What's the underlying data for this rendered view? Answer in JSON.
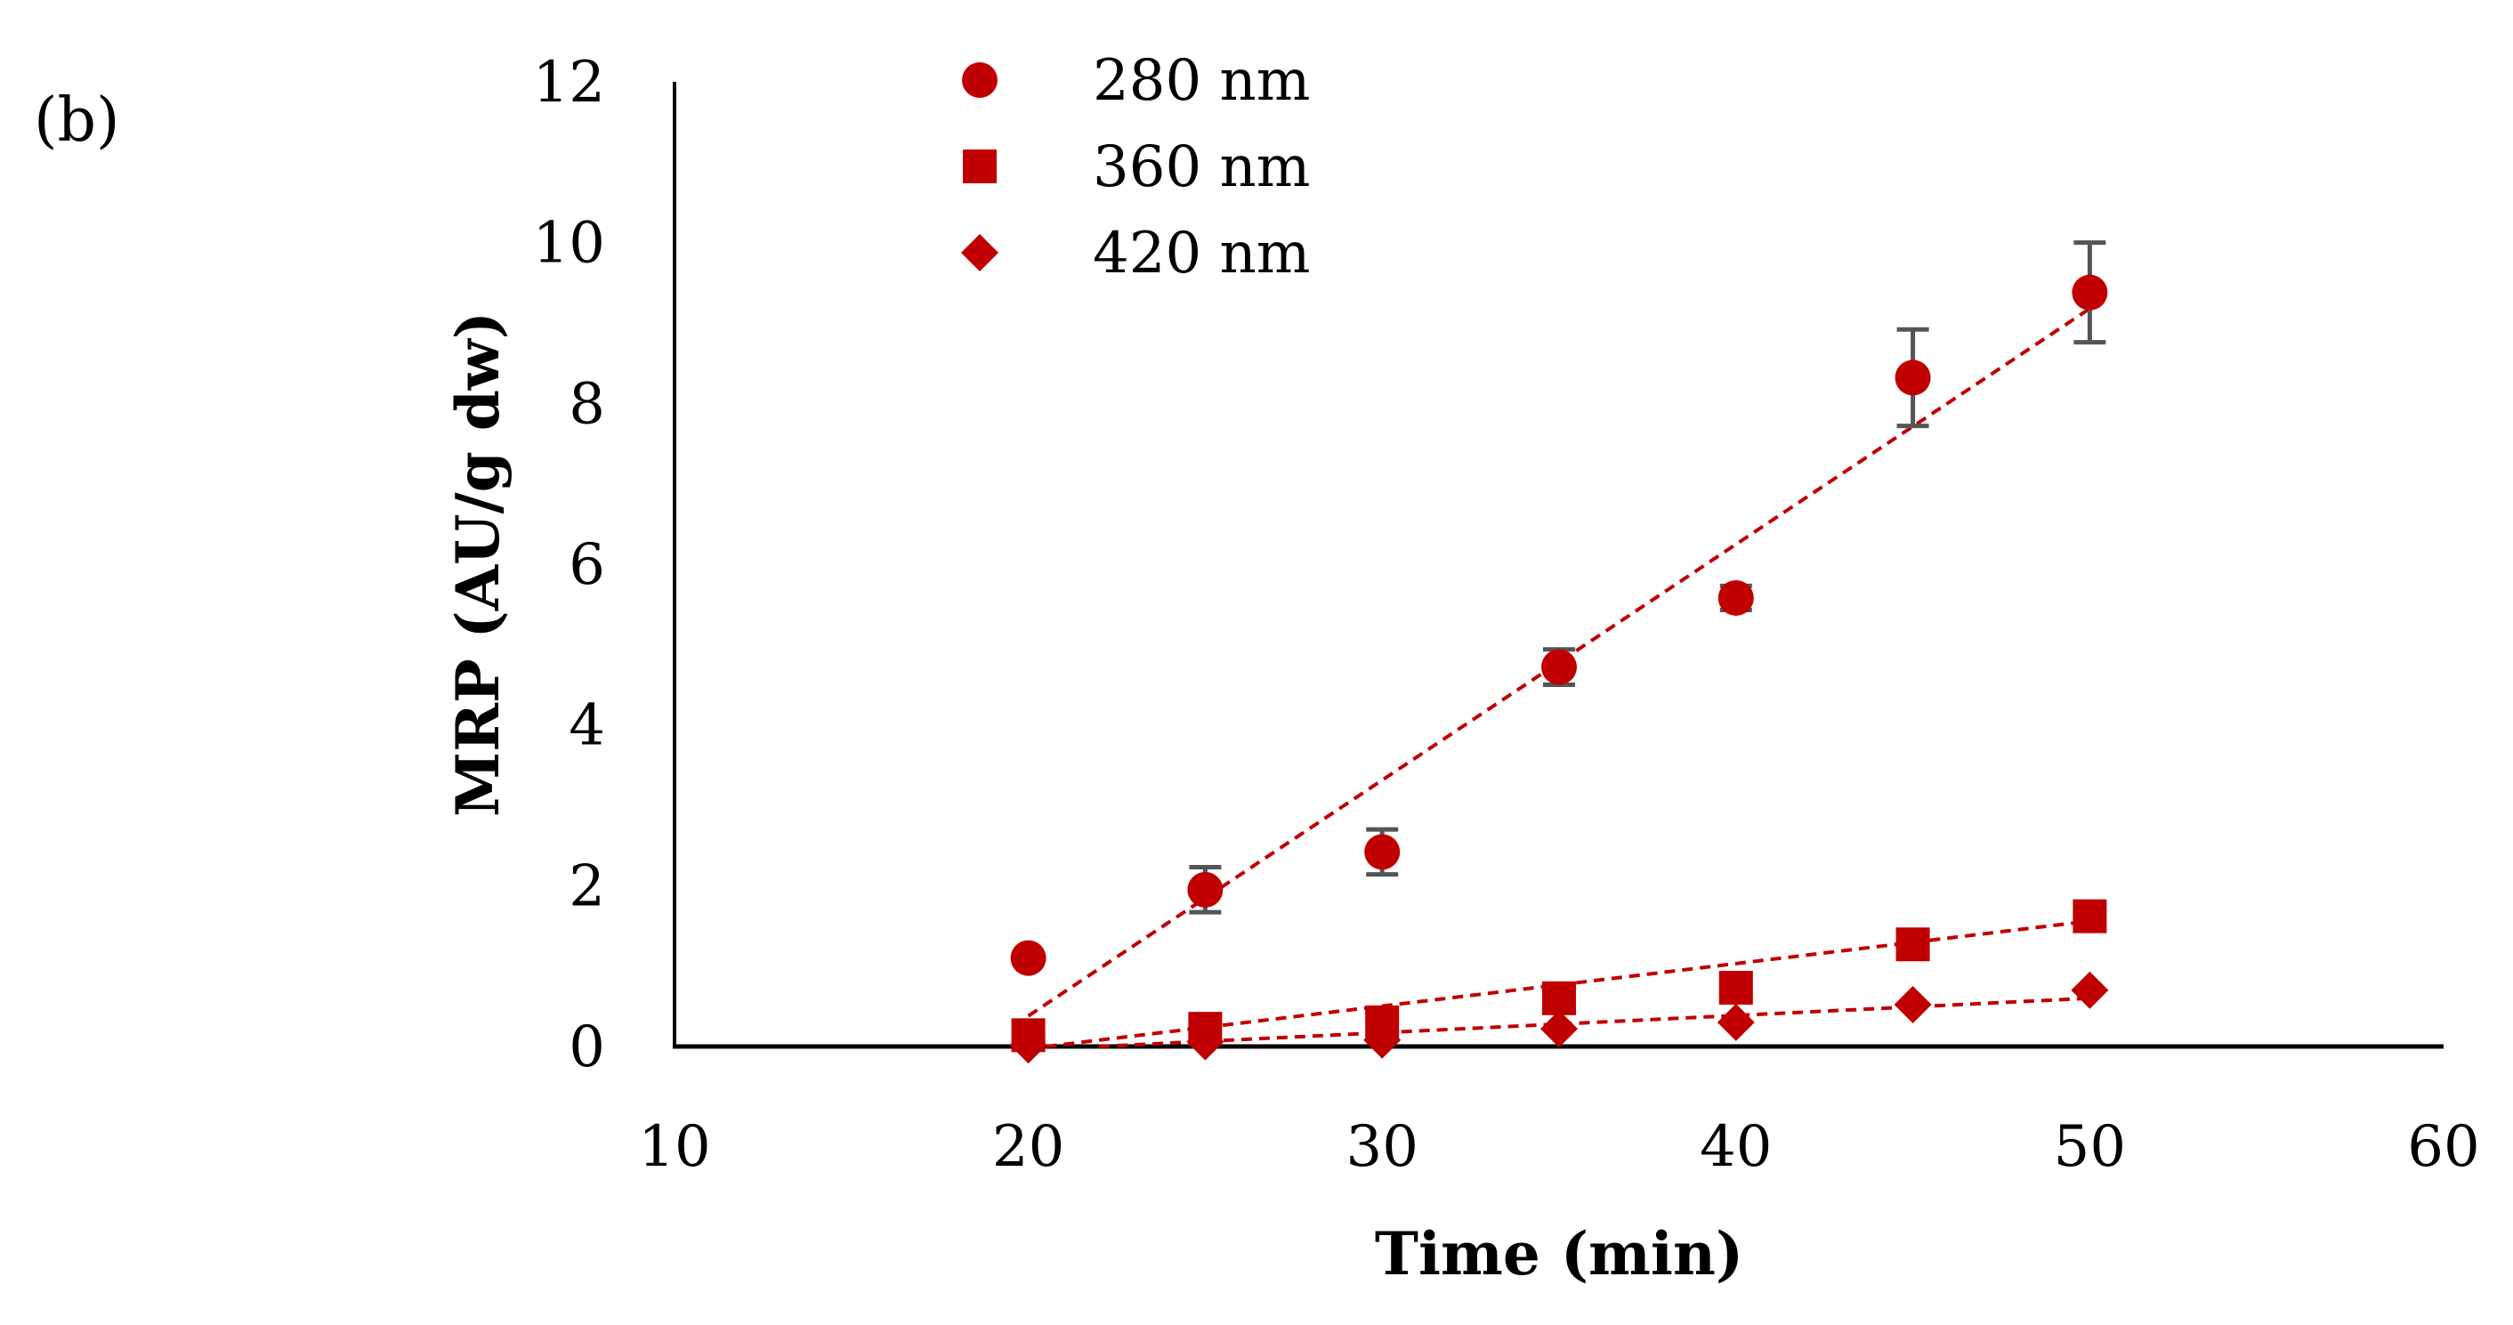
{
  "chart_data": {
    "type": "scatter",
    "panel_label": "(b)",
    "title": "",
    "xlabel": "Time (min)",
    "ylabel": "MRP (AU/g dw)",
    "xlim": [
      10,
      60
    ],
    "ylim": [
      0,
      12
    ],
    "x_ticks": [
      "10",
      "20",
      "30",
      "40",
      "50",
      "60"
    ],
    "y_ticks": [
      "0",
      "2",
      "4",
      "6",
      "8",
      "10",
      "12"
    ],
    "grid": false,
    "legend_position": "top-left",
    "x": [
      20,
      25,
      30,
      35,
      40,
      45,
      50
    ],
    "series": [
      {
        "name": "280 nm",
        "marker": "circle",
        "values": [
          1.1,
          1.95,
          2.42,
          4.72,
          5.58,
          8.32,
          9.38
        ],
        "errors": [
          0,
          0.28,
          0.28,
          0.22,
          0.15,
          0.6,
          0.62
        ],
        "trendline": [
          [
            20,
            0.38
          ],
          [
            50,
            9.18
          ]
        ]
      },
      {
        "name": "360 nm",
        "marker": "square",
        "values": [
          0.14,
          0.22,
          0.3,
          0.6,
          0.73,
          1.27,
          1.62
        ],
        "errors": [
          0,
          0,
          0,
          0,
          0,
          0,
          0
        ],
        "trendline": [
          [
            20.5,
            0
          ],
          [
            50,
            1.56
          ]
        ]
      },
      {
        "name": "420 nm",
        "marker": "diamond",
        "values": [
          0.02,
          0.06,
          0.08,
          0.22,
          0.3,
          0.52,
          0.7
        ],
        "errors": [
          0,
          0,
          0,
          0,
          0,
          0,
          0
        ],
        "trendline": [
          [
            22,
            0
          ],
          [
            50,
            0.6
          ]
        ]
      }
    ],
    "colors": {
      "marker": "#c00000",
      "trendline": "#c00000",
      "error_bar": "#555555",
      "axis": "#000000"
    }
  }
}
